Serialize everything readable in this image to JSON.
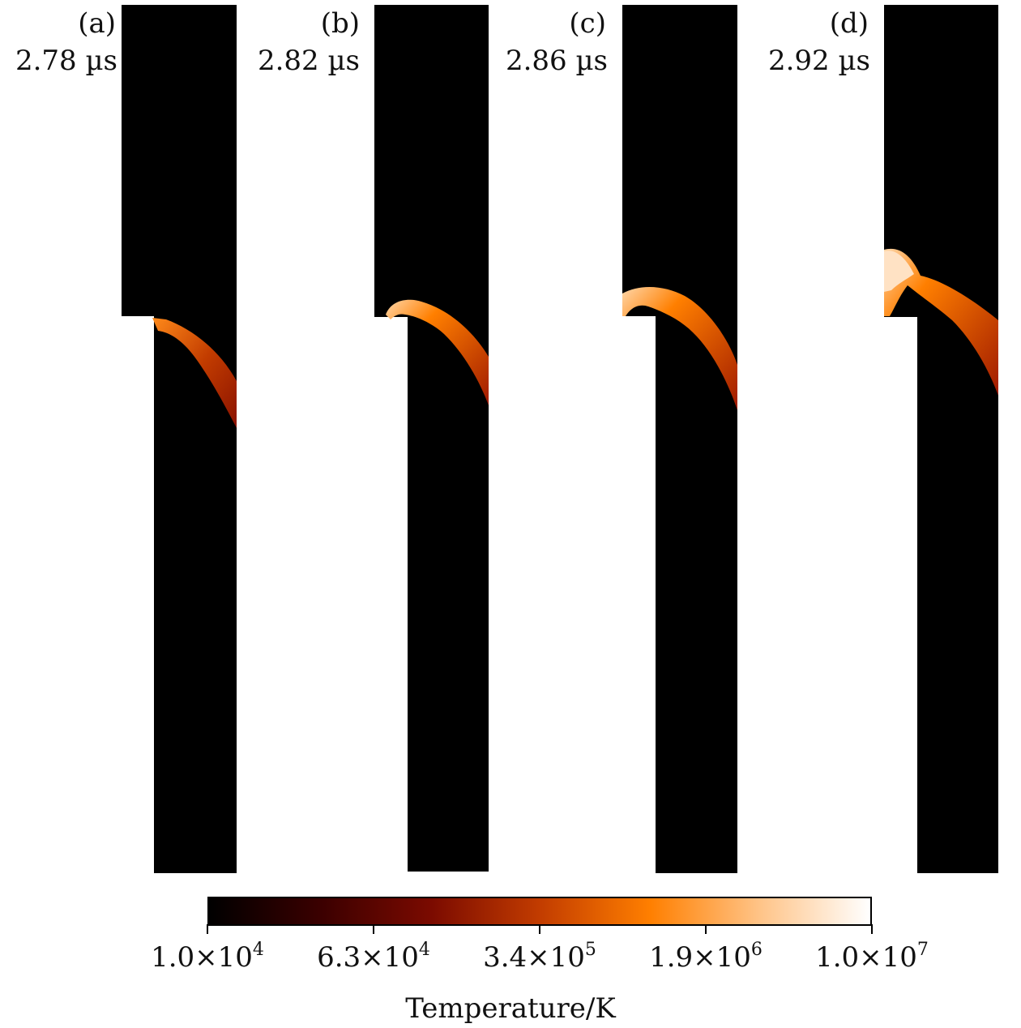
{
  "chart_data": {
    "type": "heatmap",
    "panels": [
      {
        "label": "(a)",
        "time": "2.78 µs"
      },
      {
        "label": "(b)",
        "time": "2.82 µs"
      },
      {
        "label": "(c)",
        "time": "2.86 µs"
      },
      {
        "label": "(d)",
        "time": "2.92 µs"
      }
    ],
    "colorbar": {
      "title": "Temperature/K",
      "scale": "log",
      "range": [
        10000,
        10000000
      ],
      "ticks": [
        {
          "mantissa": "1.0",
          "exponent": "4",
          "value": 10000
        },
        {
          "mantissa": "6.3",
          "exponent": "4",
          "value": 63000
        },
        {
          "mantissa": "3.4",
          "exponent": "5",
          "value": 340000
        },
        {
          "mantissa": "1.9",
          "exponent": "6",
          "value": 1900000
        },
        {
          "mantissa": "1.0",
          "exponent": "7",
          "value": 10000000
        }
      ],
      "colormap": [
        "#000000",
        "#3a0000",
        "#7a0a00",
        "#c23c00",
        "#ff7f00",
        "#ffc488",
        "#ffffff"
      ]
    }
  }
}
